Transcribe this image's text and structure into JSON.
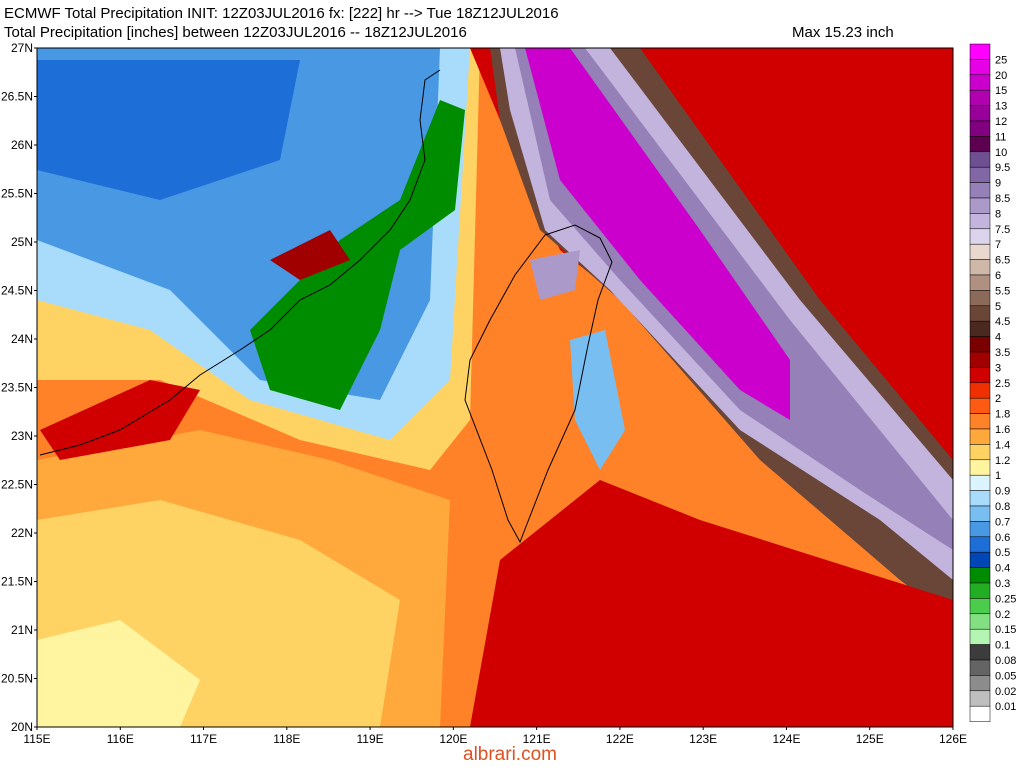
{
  "header": {
    "line1": "ECMWF Total Precipitation INIT: 12Z03JUL2016 fx: [222] hr --> Tue 18Z12JUL2016",
    "line2": "Total Precipitation [inches] between 12Z03JUL2016 -- 18Z12JUL2016",
    "max": "Max 15.23 inch"
  },
  "map": {
    "lat_labels": [
      "27N",
      "26.5N",
      "26N",
      "25.5N",
      "25N",
      "24.5N",
      "24N",
      "23.5N",
      "23N",
      "22.5N",
      "22N",
      "21.5N",
      "21N",
      "20.5N",
      "20N"
    ],
    "lon_labels": [
      "115E",
      "116E",
      "117E",
      "118E",
      "119E",
      "120E",
      "121E",
      "122E",
      "123E",
      "124E",
      "125E",
      "126E"
    ]
  },
  "legend": {
    "labels": [
      "25",
      "20",
      "15",
      "13",
      "12",
      "11",
      "10",
      "9.5",
      "9",
      "8.5",
      "8",
      "7.5",
      "7",
      "6.5",
      "6",
      "5.5",
      "5",
      "4.5",
      "4",
      "3.5",
      "3",
      "2.5",
      "2",
      "1.8",
      "1.6",
      "1.4",
      "1.2",
      "1",
      "0.9",
      "0.8",
      "0.7",
      "0.6",
      "0.5",
      "0.4",
      "0.3",
      "0.25",
      "0.2",
      "0.15",
      "0.1",
      "0.08",
      "0.05",
      "0.02",
      "0.01"
    ],
    "colors": [
      "#ff00ff",
      "#e600e6",
      "#cc00cc",
      "#b000b0",
      "#990099",
      "#800080",
      "#5e0050",
      "#6e4f92",
      "#8267a6",
      "#9680b8",
      "#ab99ca",
      "#c2b4dc",
      "#dcd3ec",
      "#e8d8d0",
      "#d0b8a8",
      "#b09080",
      "#8c6a5a",
      "#6a4638",
      "#4a2a20",
      "#7a0000",
      "#a00000",
      "#d00000",
      "#f03000",
      "#ff5a14",
      "#ff8228",
      "#ffa83c",
      "#ffd264",
      "#fff5a0",
      "#dcf4ff",
      "#a8dcfa",
      "#78bef0",
      "#4898e4",
      "#1e6ed8",
      "#0046b4",
      "#008c00",
      "#22ae22",
      "#4ccc4c",
      "#82e082",
      "#b4f5b4",
      "#3c3c3c",
      "#646464",
      "#8c8c8c",
      "#bebebe",
      "#ffffff"
    ]
  },
  "watermark": "albrari.com"
}
